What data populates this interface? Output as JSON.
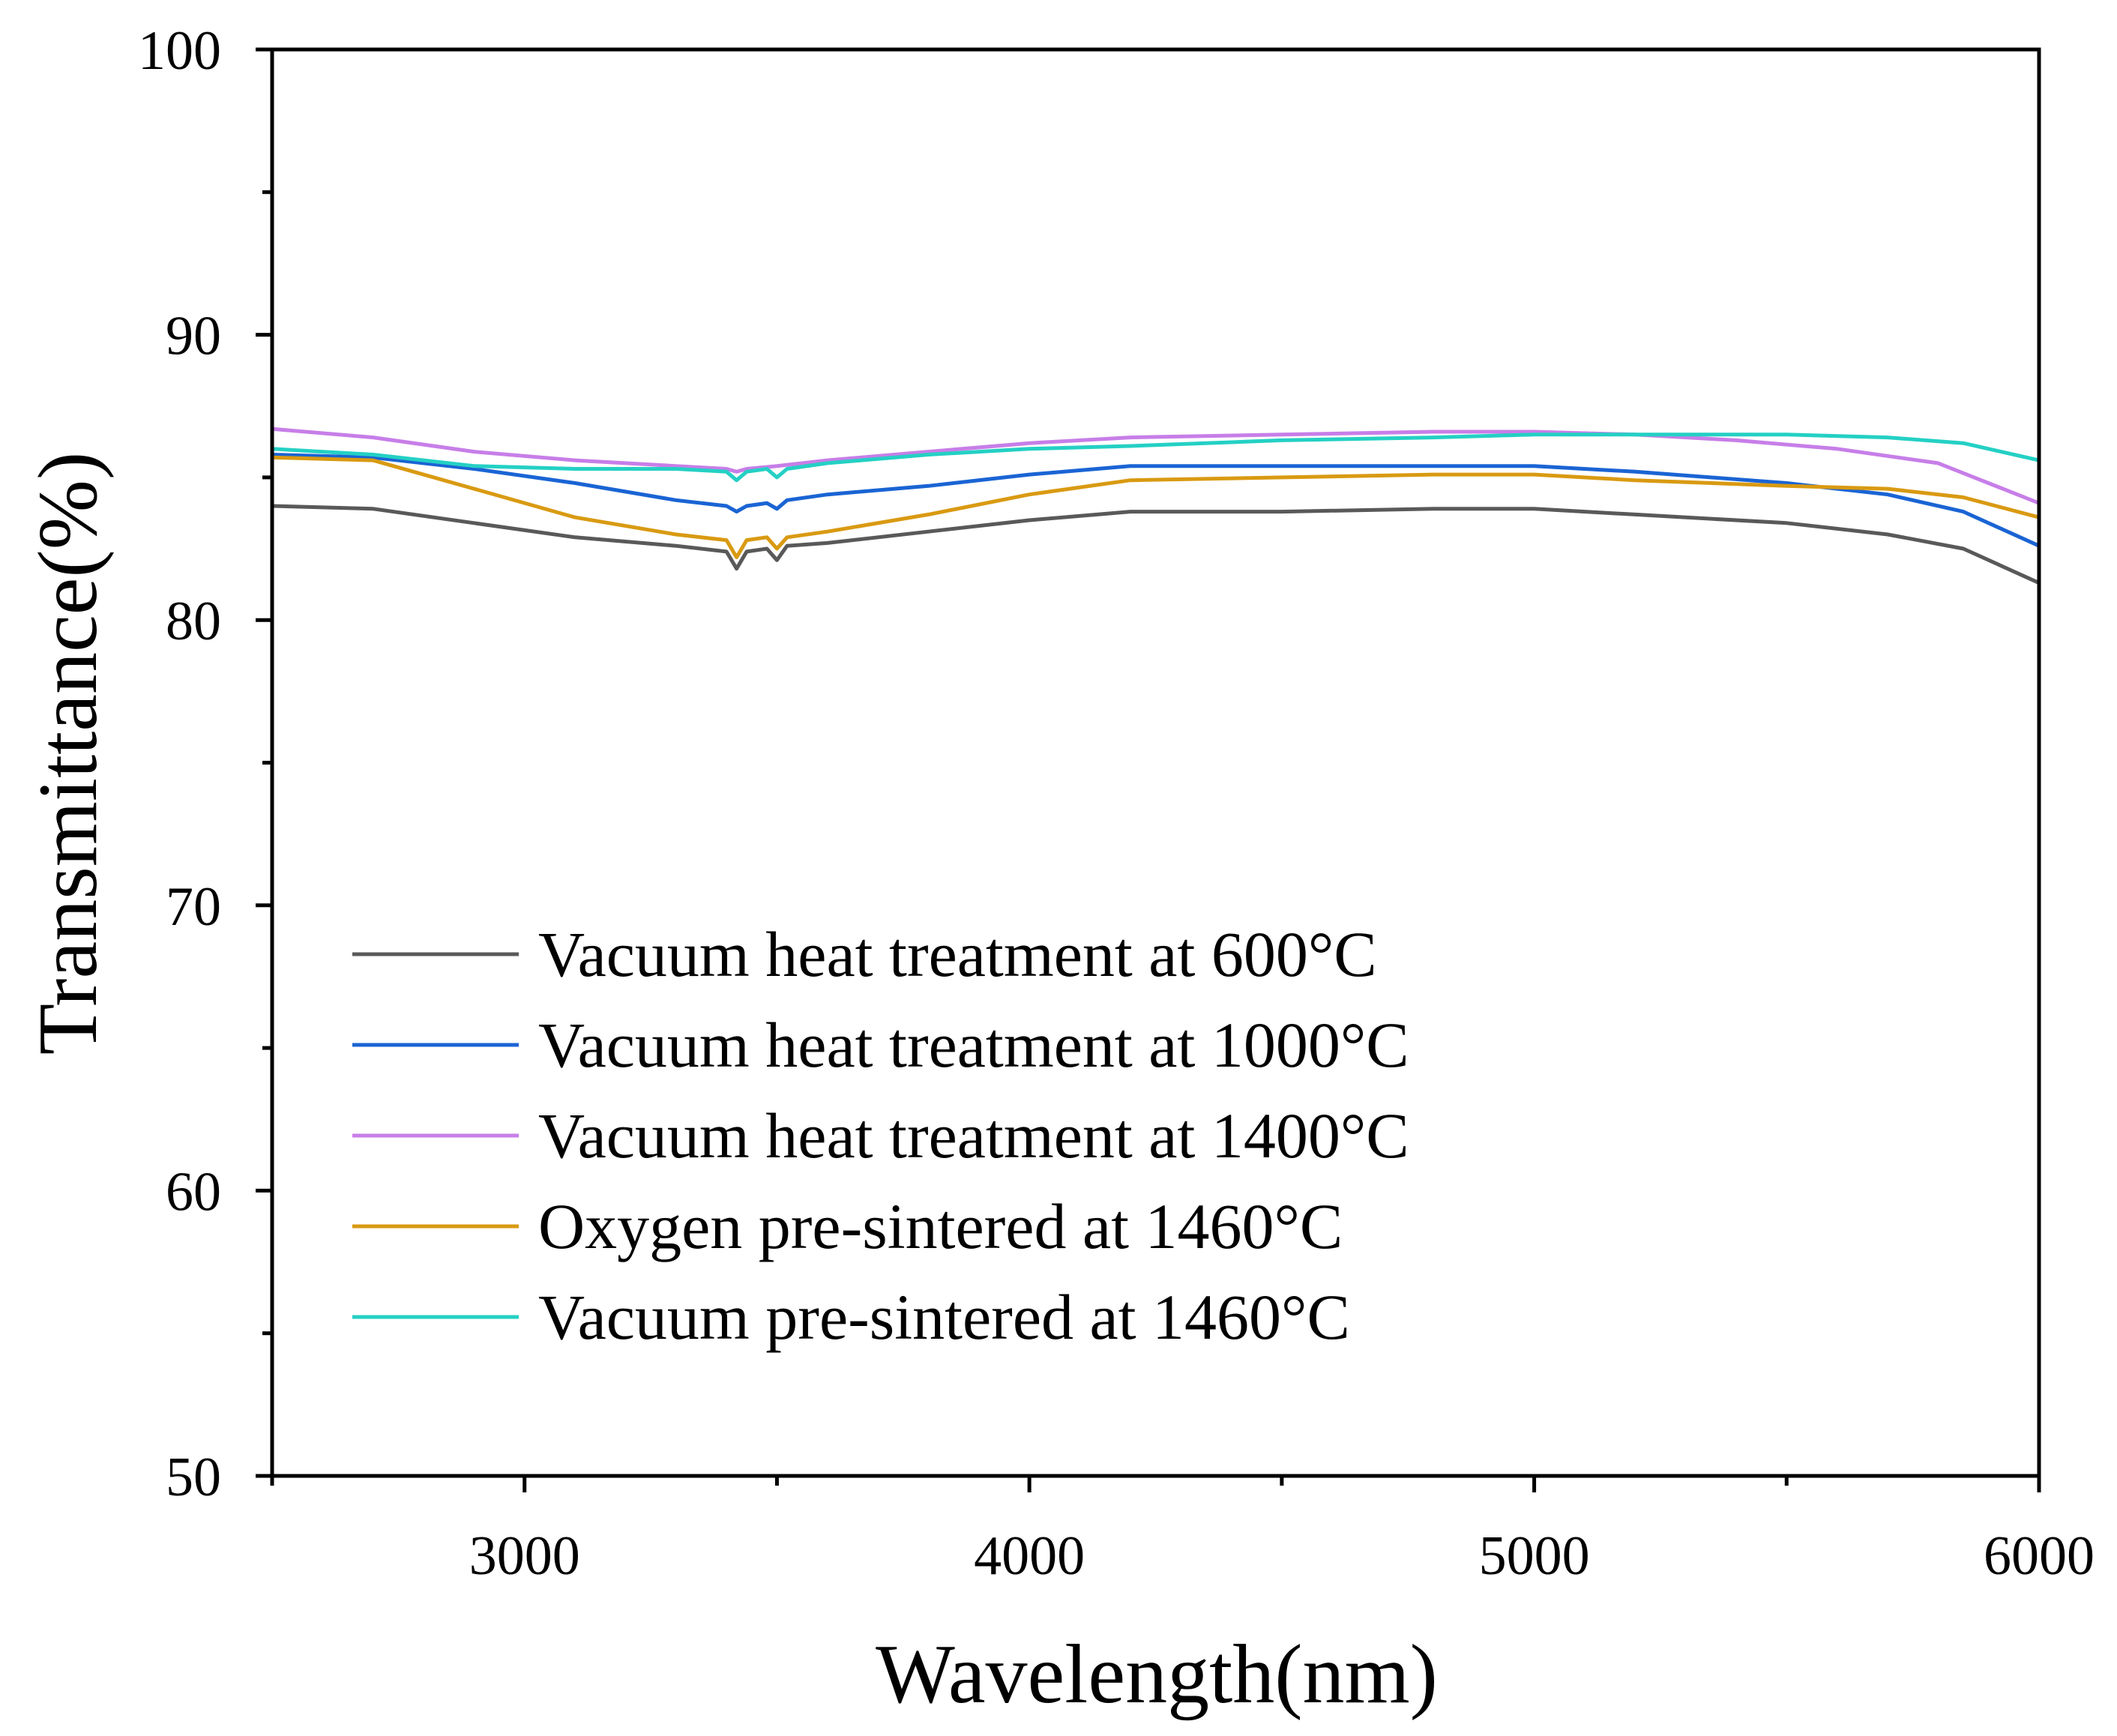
{
  "chart_data": {
    "type": "line",
    "xlabel": "Wavelength(nm)",
    "ylabel": "Transmittance(%)",
    "xlim": [
      2500,
      6000
    ],
    "ylim": [
      50,
      100
    ],
    "x_major_ticks": [
      3000,
      4000,
      5000,
      6000
    ],
    "x_tick_labels": [
      "3000",
      "4000",
      "5000",
      "6000"
    ],
    "x_minor_ticks": [
      2500,
      3500,
      4500,
      5500
    ],
    "y_major_ticks": [
      50,
      60,
      70,
      80,
      90,
      100
    ],
    "y_tick_labels": [
      "50",
      "60",
      "70",
      "80",
      "90",
      "100"
    ],
    "y_minor_ticks": [
      55,
      65,
      75,
      85,
      95
    ],
    "grid": false,
    "legend_position": "bottom-left",
    "series": [
      {
        "name": "Vacuum heat treatment at 600°C",
        "color": "#595959",
        "points": [
          [
            2500,
            84.0
          ],
          [
            2700,
            83.9
          ],
          [
            2900,
            83.4
          ],
          [
            3100,
            82.9
          ],
          [
            3300,
            82.6
          ],
          [
            3400,
            82.4
          ],
          [
            3420,
            81.8
          ],
          [
            3440,
            82.4
          ],
          [
            3480,
            82.5
          ],
          [
            3500,
            82.1
          ],
          [
            3520,
            82.6
          ],
          [
            3600,
            82.7
          ],
          [
            3800,
            83.1
          ],
          [
            4000,
            83.5
          ],
          [
            4200,
            83.8
          ],
          [
            4500,
            83.8
          ],
          [
            4800,
            83.9
          ],
          [
            5000,
            83.9
          ],
          [
            5200,
            83.7
          ],
          [
            5500,
            83.4
          ],
          [
            5700,
            83.0
          ],
          [
            5850,
            82.5
          ],
          [
            6000,
            81.3
          ]
        ]
      },
      {
        "name": "Vacuum heat treatment at 1000°C",
        "color": "#1a64d4",
        "points": [
          [
            2500,
            85.8
          ],
          [
            2700,
            85.7
          ],
          [
            2900,
            85.3
          ],
          [
            3100,
            84.8
          ],
          [
            3300,
            84.2
          ],
          [
            3400,
            84.0
          ],
          [
            3420,
            83.8
          ],
          [
            3440,
            84.0
          ],
          [
            3480,
            84.1
          ],
          [
            3500,
            83.9
          ],
          [
            3520,
            84.2
          ],
          [
            3600,
            84.4
          ],
          [
            3800,
            84.7
          ],
          [
            4000,
            85.1
          ],
          [
            4200,
            85.4
          ],
          [
            4500,
            85.4
          ],
          [
            4800,
            85.4
          ],
          [
            5000,
            85.4
          ],
          [
            5200,
            85.2
          ],
          [
            5500,
            84.8
          ],
          [
            5700,
            84.4
          ],
          [
            5850,
            83.8
          ],
          [
            6000,
            82.6
          ]
        ]
      },
      {
        "name": "Vacuum heat treatment at 1400°C",
        "color": "#c77ee8",
        "points": [
          [
            2500,
            86.7
          ],
          [
            2700,
            86.4
          ],
          [
            2900,
            85.9
          ],
          [
            3100,
            85.6
          ],
          [
            3300,
            85.4
          ],
          [
            3400,
            85.3
          ],
          [
            3420,
            85.2
          ],
          [
            3440,
            85.3
          ],
          [
            3500,
            85.4
          ],
          [
            3600,
            85.6
          ],
          [
            3800,
            85.9
          ],
          [
            4000,
            86.2
          ],
          [
            4200,
            86.4
          ],
          [
            4500,
            86.5
          ],
          [
            4800,
            86.6
          ],
          [
            5000,
            86.6
          ],
          [
            5200,
            86.5
          ],
          [
            5400,
            86.3
          ],
          [
            5600,
            86.0
          ],
          [
            5800,
            85.5
          ],
          [
            6000,
            84.1
          ]
        ]
      },
      {
        "name": "Oxygen pre-sintered at 1460°C",
        "color": "#d99a12",
        "points": [
          [
            2500,
            85.7
          ],
          [
            2700,
            85.6
          ],
          [
            2900,
            84.6
          ],
          [
            3100,
            83.6
          ],
          [
            3300,
            83.0
          ],
          [
            3400,
            82.8
          ],
          [
            3420,
            82.2
          ],
          [
            3440,
            82.8
          ],
          [
            3480,
            82.9
          ],
          [
            3500,
            82.5
          ],
          [
            3520,
            82.9
          ],
          [
            3600,
            83.1
          ],
          [
            3800,
            83.7
          ],
          [
            4000,
            84.4
          ],
          [
            4200,
            84.9
          ],
          [
            4500,
            85.0
          ],
          [
            4800,
            85.1
          ],
          [
            5000,
            85.1
          ],
          [
            5200,
            84.9
          ],
          [
            5500,
            84.7
          ],
          [
            5700,
            84.6
          ],
          [
            5850,
            84.3
          ],
          [
            6000,
            83.6
          ]
        ]
      },
      {
        "name": "Vacuum pre-sintered at 1460°C",
        "color": "#24d0c4",
        "points": [
          [
            2500,
            86.0
          ],
          [
            2700,
            85.8
          ],
          [
            2900,
            85.4
          ],
          [
            3100,
            85.3
          ],
          [
            3300,
            85.3
          ],
          [
            3400,
            85.2
          ],
          [
            3420,
            84.9
          ],
          [
            3440,
            85.2
          ],
          [
            3480,
            85.3
          ],
          [
            3500,
            85.0
          ],
          [
            3520,
            85.3
          ],
          [
            3600,
            85.5
          ],
          [
            3800,
            85.8
          ],
          [
            4000,
            86.0
          ],
          [
            4200,
            86.1
          ],
          [
            4500,
            86.3
          ],
          [
            4800,
            86.4
          ],
          [
            5000,
            86.5
          ],
          [
            5200,
            86.5
          ],
          [
            5500,
            86.5
          ],
          [
            5700,
            86.4
          ],
          [
            5850,
            86.2
          ],
          [
            6000,
            85.6
          ]
        ]
      }
    ]
  }
}
